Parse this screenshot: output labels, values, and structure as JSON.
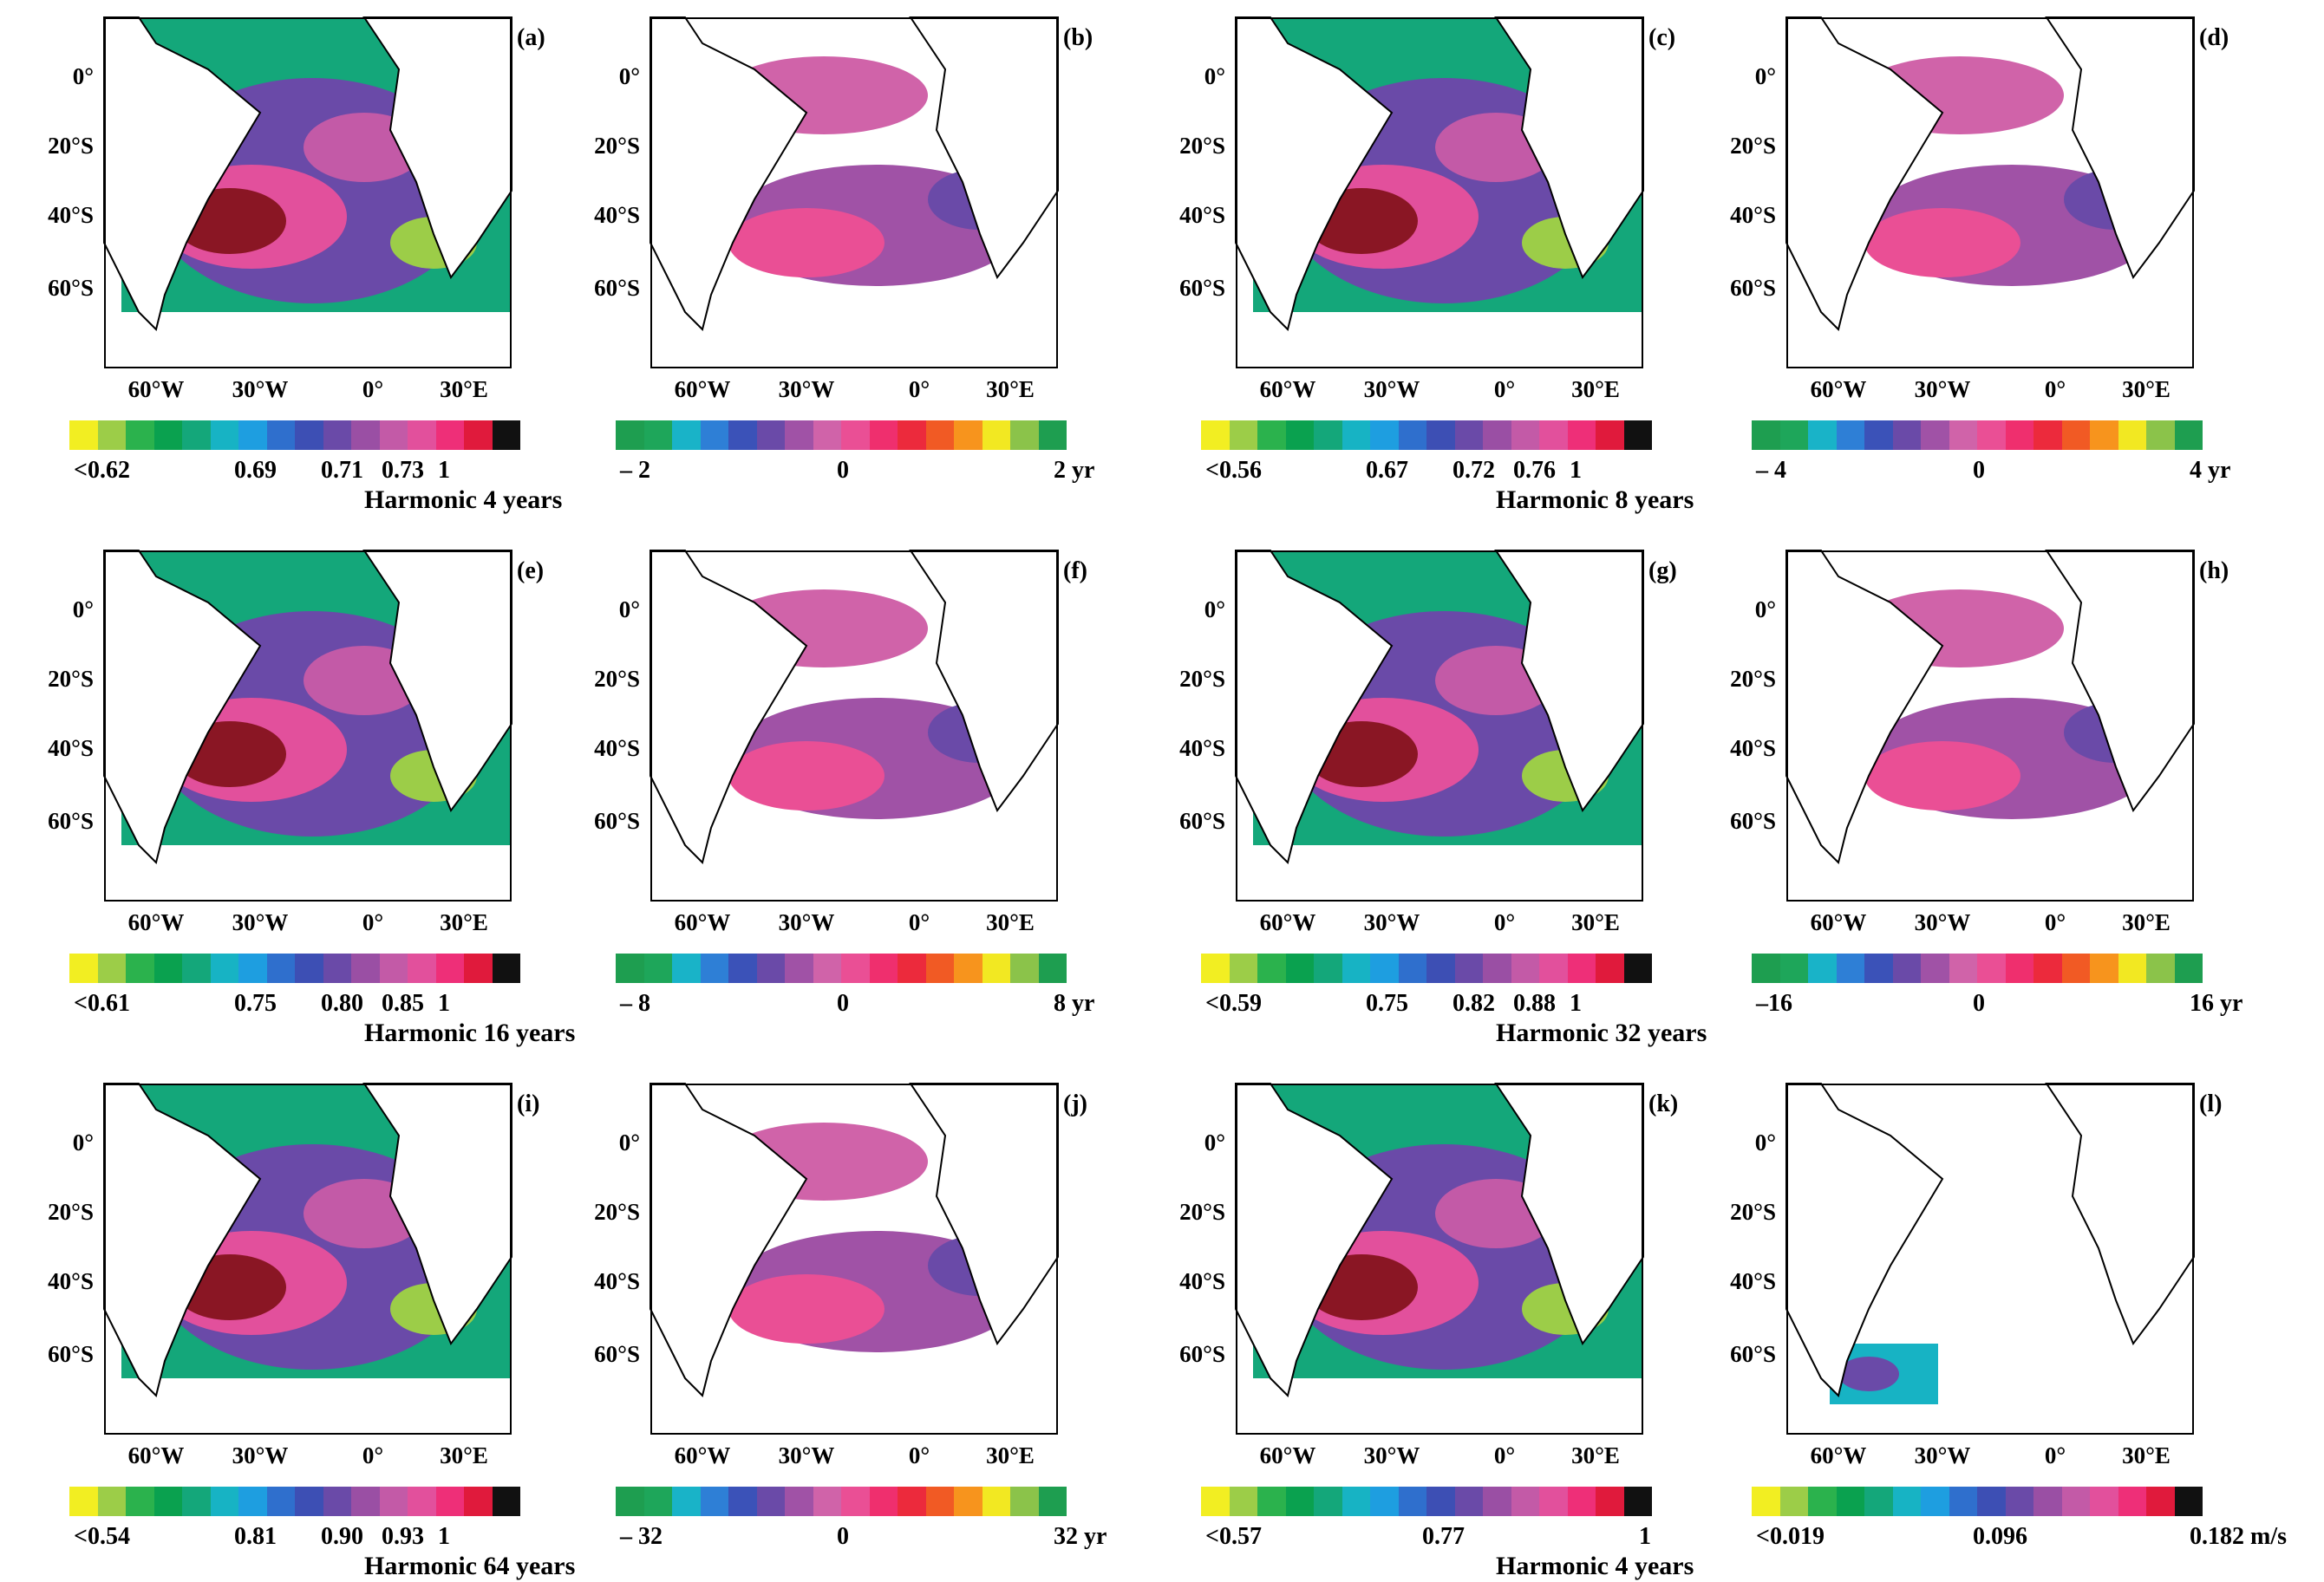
{
  "figure": {
    "lat_labels": [
      "0°",
      "20°S",
      "40°S",
      "60°S"
    ],
    "lon_labels": [
      "60°W",
      "30°W",
      "0°",
      "30°E"
    ],
    "scales": {
      "coh": [
        "#f2ee22",
        "#9ccd48",
        "#2bb24d",
        "#0aa14f",
        "#14a77a",
        "#17b3c4",
        "#1e9ee0",
        "#2f6fcd",
        "#3d4fb4",
        "#6a4aa8",
        "#9a4fa4",
        "#c35aa7",
        "#e2509c",
        "#ee2f78",
        "#e01a3c",
        "#111111"
      ],
      "phase": [
        "#1e9e50",
        "#1ea65a",
        "#19b3c8",
        "#2e7fd6",
        "#3b52b8",
        "#6a4aa8",
        "#a052a6",
        "#d063a9",
        "#ea4f95",
        "#ef2f6e",
        "#ec2a3c",
        "#f15a24",
        "#f7941d",
        "#f2e822",
        "#8bc34a",
        "#1e9e50"
      ],
      "vel": [
        "#f2ee22",
        "#9ccd48",
        "#2bb24d",
        "#0aa14f",
        "#14a77a",
        "#17b3c4",
        "#1e9ee0",
        "#2f6fcd",
        "#3d4fb4",
        "#6a4aa8",
        "#9a4fa4",
        "#c35aa7",
        "#e2509c",
        "#ee2f78",
        "#e01a3c",
        "#111111"
      ]
    },
    "panels": [
      {
        "label": "(a)",
        "scale": "coh",
        "ticks": [
          "<0.62",
          "0.69",
          "0.71",
          "0.73",
          "1"
        ],
        "caption": "Harmonic  4 years"
      },
      {
        "label": "(b)",
        "scale": "phase",
        "ticks": [
          "– 2",
          "0",
          "2 yr"
        ],
        "caption": ""
      },
      {
        "label": "(c)",
        "scale": "coh",
        "ticks": [
          "<0.56",
          "0.67",
          "0.72",
          "0.76",
          "1"
        ],
        "caption": "Harmonic  8 years"
      },
      {
        "label": "(d)",
        "scale": "phase",
        "ticks": [
          "– 4",
          "0",
          "4  yr"
        ],
        "caption": ""
      },
      {
        "label": "(e)",
        "scale": "coh",
        "ticks": [
          "<0.61",
          "0.75",
          "0.80",
          "0.85",
          "1"
        ],
        "caption": "Harmonic  16 years"
      },
      {
        "label": "(f)",
        "scale": "phase",
        "ticks": [
          "– 8",
          "0",
          "8 yr"
        ],
        "caption": ""
      },
      {
        "label": "(g)",
        "scale": "coh",
        "ticks": [
          "<0.59",
          "0.75",
          "0.82",
          "0.88",
          "1"
        ],
        "caption": "Harmonic  32 years"
      },
      {
        "label": "(h)",
        "scale": "phase",
        "ticks": [
          "–16",
          "0",
          "16 yr"
        ],
        "caption": ""
      },
      {
        "label": "(i)",
        "scale": "coh",
        "ticks": [
          "<0.54",
          "0.81",
          "0.90",
          "0.93",
          "1"
        ],
        "caption": "Harmonic  64 years"
      },
      {
        "label": "(j)",
        "scale": "phase",
        "ticks": [
          "– 32",
          "0",
          "32 yr"
        ],
        "caption": ""
      },
      {
        "label": "(k)",
        "scale": "coh",
        "ticks": [
          "<0.57",
          "0.77",
          "1"
        ],
        "caption": "Harmonic  4 years"
      },
      {
        "label": "(l)",
        "scale": "vel",
        "ticks": [
          "<0.019",
          "0.096",
          "0.182  m/s"
        ],
        "caption": ""
      }
    ]
  }
}
